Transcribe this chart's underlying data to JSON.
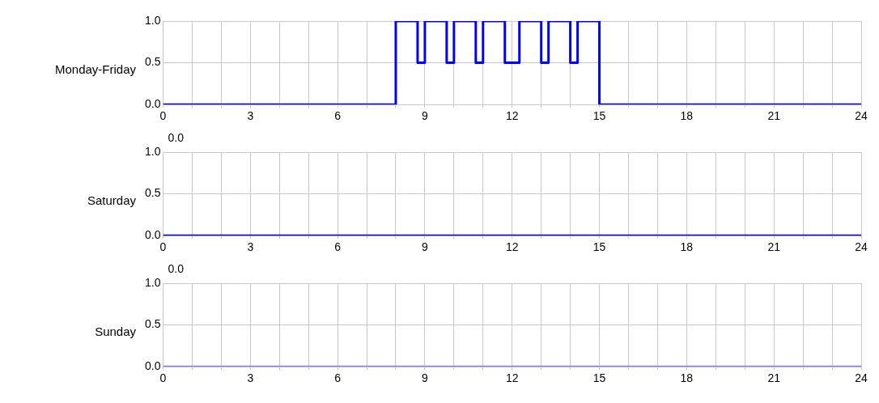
{
  "chart_data": [
    {
      "type": "step",
      "ylabel": "Monday-Friday",
      "x": [
        0,
        8,
        8.75,
        9,
        9.75,
        10,
        10.75,
        11,
        11.75,
        12.25,
        13,
        13.25,
        14,
        14.25,
        15,
        24
      ],
      "series": [
        {
          "color": "#0000ff",
          "values": [
            0,
            1,
            0.5,
            1,
            0.5,
            1,
            0.5,
            1,
            0.5,
            1,
            0.5,
            1,
            0.5,
            1,
            0,
            0
          ]
        }
      ],
      "xlim": [
        0,
        24
      ],
      "xticks": [
        0,
        {
          "value": 1,
          "label": null
        },
        {
          "value": 2,
          "label": null
        },
        3,
        {
          "value": 4,
          "label": null
        },
        {
          "value": 5,
          "label": null
        },
        6,
        {
          "value": 7,
          "label": null
        },
        {
          "value": 8,
          "label": null
        },
        9,
        {
          "value": 10,
          "label": null
        },
        {
          "value": 11,
          "label": null
        },
        12,
        {
          "value": 13,
          "label": null
        },
        {
          "value": 14,
          "label": null
        },
        15,
        {
          "value": 16,
          "label": null
        },
        {
          "value": 17,
          "label": null
        },
        18,
        {
          "value": 19,
          "label": null
        },
        {
          "value": 20,
          "label": null
        },
        21,
        {
          "value": 22,
          "label": null
        },
        {
          "value": 23,
          "label": null
        },
        24
      ],
      "ylim": [
        0,
        1
      ],
      "yticks": [
        {
          "value": 0,
          "label": "0.0"
        },
        {
          "value": 0.5,
          "label": "0.5"
        },
        {
          "value": 1,
          "label": "1.0"
        }
      ],
      "grid": true,
      "legend": false,
      "marker": "none"
    },
    {
      "type": "step",
      "ylabel": "Saturday",
      "annotations": [
        "0.0"
      ],
      "x": [
        0,
        24
      ],
      "series": [
        {
          "color": "#0000ff",
          "values": [
            0,
            0
          ]
        }
      ],
      "xlim": [
        0,
        24
      ],
      "xticks": [
        0,
        {
          "value": 1,
          "label": null
        },
        {
          "value": 2,
          "label": null
        },
        3,
        {
          "value": 4,
          "label": null
        },
        {
          "value": 5,
          "label": null
        },
        6,
        {
          "value": 7,
          "label": null
        },
        {
          "value": 8,
          "label": null
        },
        9,
        {
          "value": 10,
          "label": null
        },
        {
          "value": 11,
          "label": null
        },
        12,
        {
          "value": 13,
          "label": null
        },
        {
          "value": 14,
          "label": null
        },
        15,
        {
          "value": 16,
          "label": null
        },
        {
          "value": 17,
          "label": null
        },
        18,
        {
          "value": 19,
          "label": null
        },
        {
          "value": 20,
          "label": null
        },
        21,
        {
          "value": 22,
          "label": null
        },
        {
          "value": 23,
          "label": null
        },
        24
      ],
      "ylim": [
        0,
        1
      ],
      "yticks": [
        {
          "value": 0,
          "label": "0.0"
        },
        {
          "value": 0.5,
          "label": "0.5"
        },
        {
          "value": 1,
          "label": "1.0"
        }
      ],
      "grid": true,
      "legend": false,
      "marker": "none"
    },
    {
      "type": "step",
      "ylabel": "Sunday",
      "annotations": [
        "0.0"
      ],
      "x": [
        0,
        24
      ],
      "series": [
        {
          "color": "#7f7fff",
          "values": [
            0,
            0
          ]
        }
      ],
      "xlim": [
        0,
        24
      ],
      "xticks": [
        0,
        {
          "value": 1,
          "label": null
        },
        {
          "value": 2,
          "label": null
        },
        3,
        {
          "value": 4,
          "label": null
        },
        {
          "value": 5,
          "label": null
        },
        6,
        {
          "value": 7,
          "label": null
        },
        {
          "value": 8,
          "label": null
        },
        9,
        {
          "value": 10,
          "label": null
        },
        {
          "value": 11,
          "label": null
        },
        12,
        {
          "value": 13,
          "label": null
        },
        {
          "value": 14,
          "label": null
        },
        15,
        {
          "value": 16,
          "label": null
        },
        {
          "value": 17,
          "label": null
        },
        18,
        {
          "value": 19,
          "label": null
        },
        {
          "value": 20,
          "label": null
        },
        21,
        {
          "value": 22,
          "label": null
        },
        {
          "value": 23,
          "label": null
        },
        24
      ],
      "ylim": [
        0,
        1
      ],
      "yticks": [
        {
          "value": 0,
          "label": "0.0"
        },
        {
          "value": 0.5,
          "label": "0.5"
        },
        {
          "value": 1,
          "label": "1.0"
        }
      ],
      "grid": true,
      "legend": false,
      "marker": "none"
    }
  ]
}
